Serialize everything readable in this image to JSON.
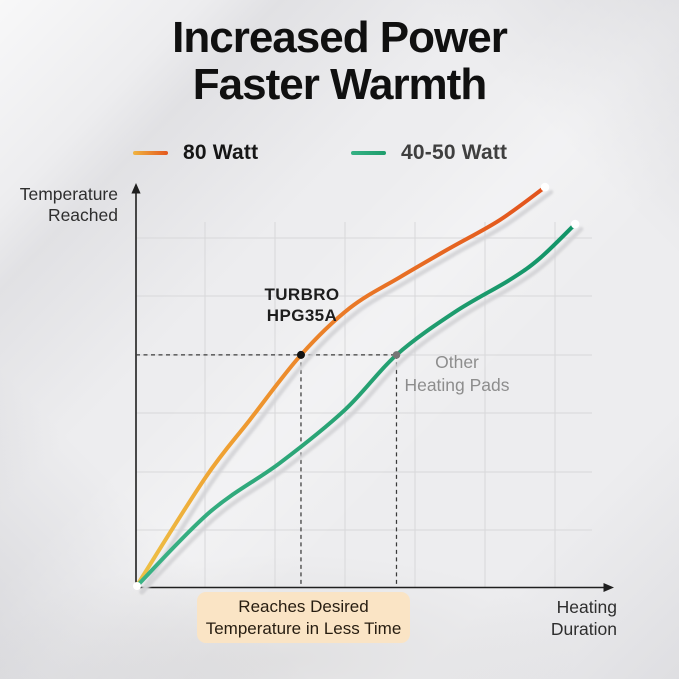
{
  "title": {
    "line1": "Increased Power",
    "line2": "Faster Warmth"
  },
  "legend": {
    "items": [
      {
        "label": "80 Watt",
        "swatch_colors": [
          "#F0B440",
          "#E4571E"
        ],
        "label_color": "#161616"
      },
      {
        "label": "40-50 Watt",
        "swatch_colors": [
          "#35B184",
          "#1E9D6C"
        ],
        "label_color": "#3f3f3f"
      }
    ]
  },
  "y_axis": {
    "label_line1": "Temperature",
    "label_line2": "Reached"
  },
  "x_axis": {
    "label_line1": "Heating",
    "label_line2": "Duration"
  },
  "annotations": {
    "turbro": {
      "line1": "TURBRO",
      "line2": "HPG35A"
    },
    "other": {
      "line1": "Other",
      "line2": "Heating Pads"
    },
    "callout": {
      "line1": "Reaches Desired",
      "line2": "Temperature in Less Time",
      "bg": "#FAE4C5"
    }
  },
  "chart_data": {
    "type": "line",
    "title": "Increased Power Faster Warmth",
    "xlabel": "Heating Duration",
    "ylabel": "Temperature Reached",
    "axis_note": "qualitative axes, no numeric tick labels shown",
    "grid": true,
    "legend_position": "top",
    "xlim": [
      0,
      100
    ],
    "ylim": [
      0,
      100
    ],
    "series": [
      {
        "name": "80 Watt",
        "color_start": "#EDC348",
        "color_mid": "#EA7C28",
        "color_end": "#E2521C",
        "points": [
          [
            0,
            0
          ],
          [
            15.1,
            27.1
          ],
          [
            24.9,
            41.6
          ],
          [
            36.1,
            57.8
          ],
          [
            46.8,
            69.5
          ],
          [
            57.8,
            77.2
          ],
          [
            68.7,
            84.4
          ],
          [
            79.6,
            91.4
          ],
          [
            89.5,
            99.6
          ]
        ]
      },
      {
        "name": "40-50 Watt",
        "color_start": "#3BB286",
        "color_mid": "#27A273",
        "color_end": "#129468",
        "points": [
          [
            0,
            0
          ],
          [
            16.2,
            18.7
          ],
          [
            31.5,
            30.9
          ],
          [
            45.7,
            44.1
          ],
          [
            57.0,
            57.8
          ],
          [
            69.8,
            68.5
          ],
          [
            81.8,
            76.5
          ],
          [
            88.4,
            81.9
          ],
          [
            96.1,
            90.4
          ]
        ]
      }
    ],
    "target_level": 57.8,
    "markers": [
      {
        "series": "80 Watt",
        "x": 36.1,
        "y": 57.8,
        "label": "TURBRO HPG35A",
        "dot_color": "#121212"
      },
      {
        "series": "40-50 Watt",
        "x": 57.0,
        "y": 57.8,
        "label": "Other Heating Pads",
        "dot_color": "#767676"
      }
    ]
  }
}
